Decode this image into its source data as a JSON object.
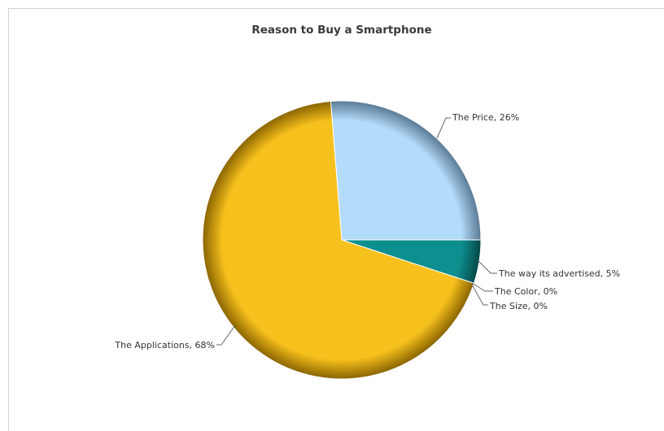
{
  "chart_data": {
    "type": "pie",
    "title": "Reason to Buy a Smartphone",
    "slices": [
      {
        "label": "The Price",
        "value": 26,
        "display": "The Price, 26%",
        "color": "#b3dbfa",
        "edge": "#5a7a94"
      },
      {
        "label": "The way its advertised",
        "value": 5,
        "display": "The way its advertised, 5%",
        "color": "#0e8f8f",
        "edge": "#064848"
      },
      {
        "label": "The Color",
        "value": 0,
        "display": "The Color, 0%",
        "color": "#8cc43c",
        "edge": "#4a6b1c"
      },
      {
        "label": "The Size",
        "value": 0,
        "display": "The Size, 0%",
        "color": "#d9534f",
        "edge": "#7a2a28"
      },
      {
        "label": "The Applications",
        "value": 68,
        "display": "The Applications, 68%",
        "color": "#f7c11d",
        "edge": "#8a6400"
      }
    ],
    "legend": "none",
    "data_labels": "outside-with-leader-lines"
  }
}
